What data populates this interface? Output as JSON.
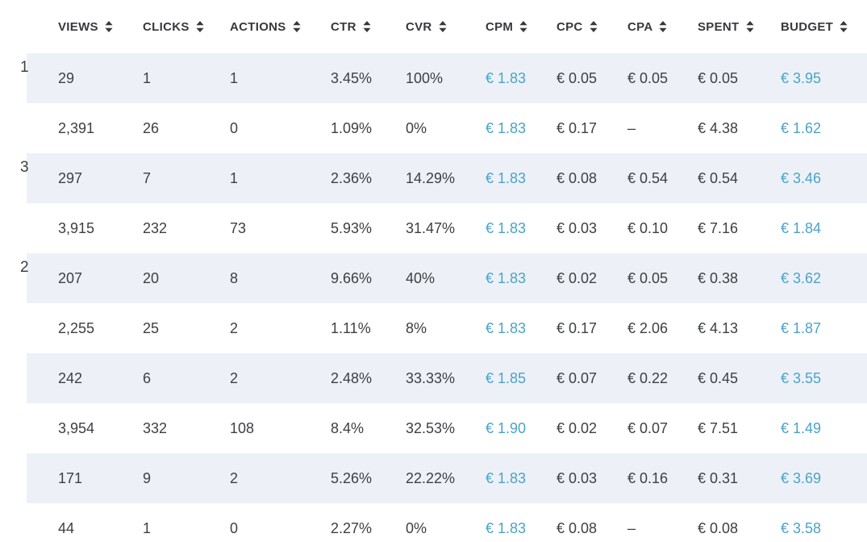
{
  "colors": {
    "accent_blue": "#4ba3c8",
    "text_dark": "#3d4043",
    "header_text": "#37393c",
    "row_shaded_bg": "#edf1f7",
    "row_plain_bg": "#ffffff"
  },
  "table": {
    "columns": [
      {
        "id": "views",
        "label": "VIEWS"
      },
      {
        "id": "clicks",
        "label": "CLICKS"
      },
      {
        "id": "actions",
        "label": "ACTIONS"
      },
      {
        "id": "ctr",
        "label": "CTR"
      },
      {
        "id": "cvr",
        "label": "CVR"
      },
      {
        "id": "cpm",
        "label": "CPM"
      },
      {
        "id": "cpc",
        "label": "CPC"
      },
      {
        "id": "cpa",
        "label": "CPA"
      },
      {
        "id": "spent",
        "label": "SPENT"
      },
      {
        "id": "budget",
        "label": "BUDGET"
      }
    ],
    "blue_columns": [
      "cpm",
      "budget"
    ],
    "rows": [
      {
        "views": "29",
        "clicks": "1",
        "actions": "1",
        "ctr": "3.45%",
        "cvr": "100%",
        "cpm": "€ 1.83",
        "cpc": "€ 0.05",
        "cpa": "€ 0.05",
        "spent": "€ 0.05",
        "budget": "€ 3.95"
      },
      {
        "views": "2,391",
        "clicks": "26",
        "actions": "0",
        "ctr": "1.09%",
        "cvr": "0%",
        "cpm": "€ 1.83",
        "cpc": "€ 0.17",
        "cpa": "–",
        "spent": "€ 4.38",
        "budget": "€ 1.62"
      },
      {
        "views": "297",
        "clicks": "7",
        "actions": "1",
        "ctr": "2.36%",
        "cvr": "14.29%",
        "cpm": "€ 1.83",
        "cpc": "€ 0.08",
        "cpa": "€ 0.54",
        "spent": "€ 0.54",
        "budget": "€ 3.46"
      },
      {
        "views": "3,915",
        "clicks": "232",
        "actions": "73",
        "ctr": "5.93%",
        "cvr": "31.47%",
        "cpm": "€ 1.83",
        "cpc": "€ 0.03",
        "cpa": "€ 0.10",
        "spent": "€ 7.16",
        "budget": "€ 1.84"
      },
      {
        "views": "207",
        "clicks": "20",
        "actions": "8",
        "ctr": "9.66%",
        "cvr": "40%",
        "cpm": "€ 1.83",
        "cpc": "€ 0.02",
        "cpa": "€ 0.05",
        "spent": "€ 0.38",
        "budget": "€ 3.62"
      },
      {
        "views": "2,255",
        "clicks": "25",
        "actions": "2",
        "ctr": "1.11%",
        "cvr": "8%",
        "cpm": "€ 1.83",
        "cpc": "€ 0.17",
        "cpa": "€ 2.06",
        "spent": "€ 4.13",
        "budget": "€ 1.87"
      },
      {
        "views": "242",
        "clicks": "6",
        "actions": "2",
        "ctr": "2.48%",
        "cvr": "33.33%",
        "cpm": "€ 1.85",
        "cpc": "€ 0.07",
        "cpa": "€ 0.22",
        "spent": "€ 0.45",
        "budget": "€ 3.55"
      },
      {
        "views": "3,954",
        "clicks": "332",
        "actions": "108",
        "ctr": "8.4%",
        "cvr": "32.53%",
        "cpm": "€ 1.90",
        "cpc": "€ 0.02",
        "cpa": "€ 0.07",
        "spent": "€ 7.51",
        "budget": "€ 1.49"
      },
      {
        "views": "171",
        "clicks": "9",
        "actions": "2",
        "ctr": "5.26%",
        "cvr": "22.22%",
        "cpm": "€ 1.83",
        "cpc": "€ 0.03",
        "cpa": "€ 0.16",
        "spent": "€ 0.31",
        "budget": "€ 3.69"
      },
      {
        "views": "44",
        "clicks": "1",
        "actions": "0",
        "ctr": "2.27%",
        "cvr": "0%",
        "cpm": "€ 1.83",
        "cpc": "€ 0.08",
        "cpa": "–",
        "spent": "€ 0.08",
        "budget": "€ 3.58"
      }
    ],
    "left_edge_fragments": [
      {
        "row": 1,
        "text": "1"
      },
      {
        "row": 3,
        "text": "3"
      },
      {
        "row": 5,
        "text": "2"
      }
    ]
  }
}
